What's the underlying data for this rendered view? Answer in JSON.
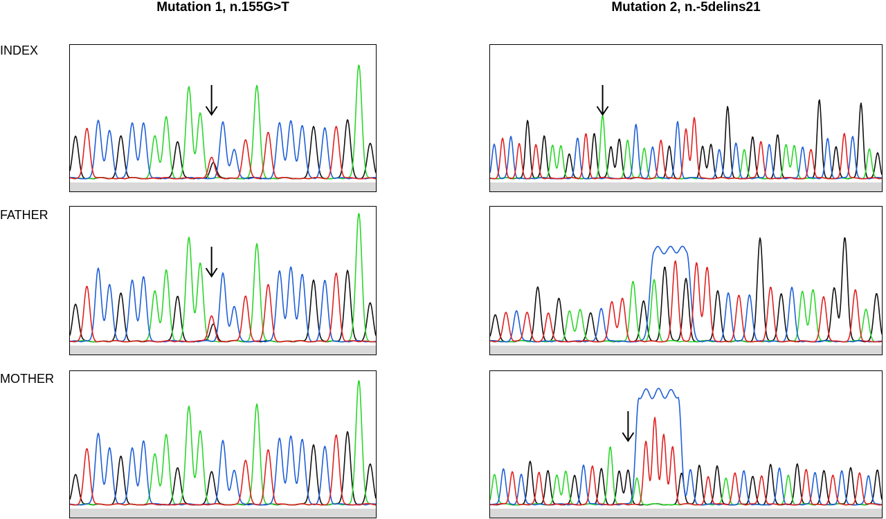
{
  "columns": [
    {
      "title": "Mutation 1, n.155G>T"
    },
    {
      "title": "Mutation 2, n.-5delins21"
    }
  ],
  "rows": [
    {
      "label": "INDEX"
    },
    {
      "label": "FATHER"
    },
    {
      "label": "MOTHER"
    }
  ],
  "colors": {
    "A": "#2bd62b",
    "C": "#1f5fd6",
    "G": "#111111",
    "T": "#e02020",
    "baseline": "#d9d9d9"
  },
  "chart_data": [
    {
      "type": "line",
      "panel": "INDEX / Mutation 1, n.155G>T",
      "arrow_at_peak": 12,
      "peaks": [
        {
          "base": "G",
          "h": 0.32
        },
        {
          "base": "T",
          "h": 0.38
        },
        {
          "base": "C",
          "h": 0.44
        },
        {
          "base": "C",
          "h": 0.36
        },
        {
          "base": "G",
          "h": 0.32
        },
        {
          "base": "C",
          "h": 0.42
        },
        {
          "base": "C",
          "h": 0.42
        },
        {
          "base": "A",
          "h": 0.32
        },
        {
          "base": "A",
          "h": 0.46
        },
        {
          "base": "G",
          "h": 0.28
        },
        {
          "base": "A",
          "h": 0.69
        },
        {
          "base": "A",
          "h": 0.49
        },
        {
          "base": "T",
          "h": 0.16,
          "sec": {
            "base": "G",
            "h": 0.12
          }
        },
        {
          "base": "C",
          "h": 0.42
        },
        {
          "base": "C",
          "h": 0.22
        },
        {
          "base": "T",
          "h": 0.29
        },
        {
          "base": "A",
          "h": 0.7
        },
        {
          "base": "T",
          "h": 0.35
        },
        {
          "base": "C",
          "h": 0.42
        },
        {
          "base": "C",
          "h": 0.43
        },
        {
          "base": "C",
          "h": 0.4
        },
        {
          "base": "G",
          "h": 0.39
        },
        {
          "base": "C",
          "h": 0.38
        },
        {
          "base": "T",
          "h": 0.39
        },
        {
          "base": "G",
          "h": 0.44
        },
        {
          "base": "A",
          "h": 0.86
        },
        {
          "base": "G",
          "h": 0.26
        }
      ]
    },
    {
      "type": "line",
      "panel": "INDEX / Mutation 2, n.-5delins21",
      "arrow_at_peak": 13,
      "peaks": [
        {
          "base": "C",
          "h": 0.26
        },
        {
          "base": "T",
          "h": 0.3
        },
        {
          "base": "C",
          "h": 0.31
        },
        {
          "base": "T",
          "h": 0.26
        },
        {
          "base": "G",
          "h": 0.44
        },
        {
          "base": "T",
          "h": 0.25
        },
        {
          "base": "G",
          "h": 0.32
        },
        {
          "base": "A",
          "h": 0.25
        },
        {
          "base": "A",
          "h": 0.25
        },
        {
          "base": "G",
          "h": 0.18
        },
        {
          "base": "C",
          "h": 0.3
        },
        {
          "base": "T",
          "h": 0.34
        },
        {
          "base": "G",
          "h": 0.34
        },
        {
          "base": "A",
          "h": 0.47
        },
        {
          "base": "G",
          "h": 0.24
        },
        {
          "base": "G",
          "h": 0.3
        },
        {
          "base": "A",
          "h": 0.29
        },
        {
          "base": "C",
          "h": 0.41
        },
        {
          "base": "A",
          "h": 0.23
        },
        {
          "base": "C",
          "h": 0.24
        },
        {
          "base": "T",
          "h": 0.29
        },
        {
          "base": "G",
          "h": 0.24
        },
        {
          "base": "C",
          "h": 0.43
        },
        {
          "base": "T",
          "h": 0.37
        },
        {
          "base": "T",
          "h": 0.46
        },
        {
          "base": "G",
          "h": 0.24
        },
        {
          "base": "G",
          "h": 0.26
        },
        {
          "base": "C",
          "h": 0.22
        },
        {
          "base": "G",
          "h": 0.54
        },
        {
          "base": "C",
          "h": 0.27
        },
        {
          "base": "A",
          "h": 0.22
        },
        {
          "base": "G",
          "h": 0.31
        },
        {
          "base": "T",
          "h": 0.28
        },
        {
          "base": "C",
          "h": 0.26
        },
        {
          "base": "G",
          "h": 0.33
        },
        {
          "base": "A",
          "h": 0.25
        },
        {
          "base": "A",
          "h": 0.25
        },
        {
          "base": "C",
          "h": 0.24
        },
        {
          "base": "T",
          "h": 0.22
        },
        {
          "base": "G",
          "h": 0.59
        },
        {
          "base": "C",
          "h": 0.3
        },
        {
          "base": "G",
          "h": 0.24
        },
        {
          "base": "T",
          "h": 0.34
        },
        {
          "base": "C",
          "h": 0.32
        },
        {
          "base": "G",
          "h": 0.57
        },
        {
          "base": "A",
          "h": 0.22
        },
        {
          "base": "G",
          "h": 0.19
        }
      ]
    },
    {
      "type": "line",
      "panel": "FATHER / Mutation 1, n.155G>T",
      "arrow_at_peak": 12,
      "peaks": [
        {
          "base": "G",
          "h": 0.28
        },
        {
          "base": "T",
          "h": 0.41
        },
        {
          "base": "C",
          "h": 0.55
        },
        {
          "base": "C",
          "h": 0.42
        },
        {
          "base": "G",
          "h": 0.36
        },
        {
          "base": "C",
          "h": 0.46
        },
        {
          "base": "C",
          "h": 0.48
        },
        {
          "base": "A",
          "h": 0.38
        },
        {
          "base": "A",
          "h": 0.53
        },
        {
          "base": "G",
          "h": 0.34
        },
        {
          "base": "A",
          "h": 0.78
        },
        {
          "base": "A",
          "h": 0.58
        },
        {
          "base": "T",
          "h": 0.19,
          "sec": {
            "base": "G",
            "h": 0.13
          }
        },
        {
          "base": "C",
          "h": 0.51
        },
        {
          "base": "C",
          "h": 0.26
        },
        {
          "base": "T",
          "h": 0.34
        },
        {
          "base": "A",
          "h": 0.73
        },
        {
          "base": "T",
          "h": 0.42
        },
        {
          "base": "C",
          "h": 0.53
        },
        {
          "base": "C",
          "h": 0.55
        },
        {
          "base": "C",
          "h": 0.5
        },
        {
          "base": "G",
          "h": 0.46
        },
        {
          "base": "C",
          "h": 0.45
        },
        {
          "base": "T",
          "h": 0.51
        },
        {
          "base": "G",
          "h": 0.53
        },
        {
          "base": "A",
          "h": 0.96
        },
        {
          "base": "G",
          "h": 0.29
        }
      ]
    },
    {
      "type": "line",
      "panel": "FATHER / Mutation 2, n.-5delins21",
      "wide_peaks": [
        {
          "base": "C",
          "center": 0.46,
          "width": 0.085,
          "h": 0.71
        }
      ],
      "peaks": [
        {
          "base": "G",
          "h": 0.2
        },
        {
          "base": "T",
          "h": 0.22
        },
        {
          "base": "C",
          "h": 0.23
        },
        {
          "base": "T",
          "h": 0.22
        },
        {
          "base": "G",
          "h": 0.41
        },
        {
          "base": "T",
          "h": 0.21
        },
        {
          "base": "G",
          "h": 0.32
        },
        {
          "base": "A",
          "h": 0.23
        },
        {
          "base": "A",
          "h": 0.24
        },
        {
          "base": "G",
          "h": 0.21
        },
        {
          "base": "C",
          "h": 0.25
        },
        {
          "base": "T",
          "h": 0.3
        },
        {
          "base": "T",
          "h": 0.32
        },
        {
          "base": "A",
          "h": 0.45
        },
        {
          "base": "G",
          "h": 0.3
        },
        {
          "base": "A",
          "h": 0.46
        },
        {
          "base": "G",
          "h": 0.56
        },
        {
          "base": "T",
          "h": 0.6
        },
        {
          "base": "G",
          "h": 0.47
        },
        {
          "base": "T",
          "h": 0.59
        },
        {
          "base": "T",
          "h": 0.55
        },
        {
          "base": "G",
          "h": 0.38
        },
        {
          "base": "C",
          "h": 0.36
        },
        {
          "base": "T",
          "h": 0.34
        },
        {
          "base": "C",
          "h": 0.35
        },
        {
          "base": "G",
          "h": 0.77
        },
        {
          "base": "T",
          "h": 0.4
        },
        {
          "base": "G",
          "h": 0.36
        },
        {
          "base": "C",
          "h": 0.4
        },
        {
          "base": "A",
          "h": 0.37
        },
        {
          "base": "A",
          "h": 0.39
        },
        {
          "base": "T",
          "h": 0.33
        },
        {
          "base": "G",
          "h": 0.4
        },
        {
          "base": "G",
          "h": 0.78
        },
        {
          "base": "T",
          "h": 0.38
        },
        {
          "base": "A",
          "h": 0.24
        },
        {
          "base": "G",
          "h": 0.36
        }
      ]
    },
    {
      "type": "line",
      "panel": "MOTHER / Mutation 1, n.155G>T",
      "peaks": [
        {
          "base": "G",
          "h": 0.23
        },
        {
          "base": "T",
          "h": 0.42
        },
        {
          "base": "C",
          "h": 0.54
        },
        {
          "base": "C",
          "h": 0.43
        },
        {
          "base": "G",
          "h": 0.36
        },
        {
          "base": "C",
          "h": 0.43
        },
        {
          "base": "C",
          "h": 0.48
        },
        {
          "base": "A",
          "h": 0.38
        },
        {
          "base": "A",
          "h": 0.53
        },
        {
          "base": "G",
          "h": 0.28
        },
        {
          "base": "A",
          "h": 0.74
        },
        {
          "base": "A",
          "h": 0.56
        },
        {
          "base": "G",
          "h": 0.25
        },
        {
          "base": "C",
          "h": 0.48
        },
        {
          "base": "C",
          "h": 0.26
        },
        {
          "base": "T",
          "h": 0.33
        },
        {
          "base": "A",
          "h": 0.76
        },
        {
          "base": "T",
          "h": 0.41
        },
        {
          "base": "C",
          "h": 0.5
        },
        {
          "base": "C",
          "h": 0.52
        },
        {
          "base": "C",
          "h": 0.49
        },
        {
          "base": "G",
          "h": 0.45
        },
        {
          "base": "C",
          "h": 0.44
        },
        {
          "base": "T",
          "h": 0.52
        },
        {
          "base": "G",
          "h": 0.55
        },
        {
          "base": "A",
          "h": 0.94
        },
        {
          "base": "G",
          "h": 0.3
        }
      ]
    },
    {
      "type": "line",
      "panel": "MOTHER / Mutation 2, n.-5delins21",
      "arrow_at_peak": 15,
      "wide_peaks": [
        {
          "base": "C",
          "center": 0.43,
          "width": 0.1,
          "h": 0.87
        }
      ],
      "peaks": [
        {
          "base": "A",
          "h": 0.23
        },
        {
          "base": "C",
          "h": 0.27
        },
        {
          "base": "T",
          "h": 0.25
        },
        {
          "base": "C",
          "h": 0.23
        },
        {
          "base": "G",
          "h": 0.33
        },
        {
          "base": "T",
          "h": 0.24
        },
        {
          "base": "G",
          "h": 0.26
        },
        {
          "base": "A",
          "h": 0.22
        },
        {
          "base": "A",
          "h": 0.25
        },
        {
          "base": "G",
          "h": 0.22
        },
        {
          "base": "C",
          "h": 0.3
        },
        {
          "base": "T",
          "h": 0.29
        },
        {
          "base": "G",
          "h": 0.27
        },
        {
          "base": "A",
          "h": 0.44
        },
        {
          "base": "G",
          "h": 0.25
        },
        {
          "base": "G",
          "h": 0.26
        },
        {
          "base": "A",
          "h": 0.2
        },
        {
          "base": "T",
          "h": 0.48
        },
        {
          "base": "T",
          "h": 0.65
        },
        {
          "base": "T",
          "h": 0.53
        },
        {
          "base": "T",
          "h": 0.44
        },
        {
          "base": "G",
          "h": 0.24
        },
        {
          "base": "C",
          "h": 0.26
        },
        {
          "base": "G",
          "h": 0.3
        },
        {
          "base": "T",
          "h": 0.21
        },
        {
          "base": "G",
          "h": 0.29
        },
        {
          "base": "A",
          "h": 0.2
        },
        {
          "base": "T",
          "h": 0.24
        },
        {
          "base": "C",
          "h": 0.25
        },
        {
          "base": "G",
          "h": 0.21
        },
        {
          "base": "T",
          "h": 0.22
        },
        {
          "base": "G",
          "h": 0.3
        },
        {
          "base": "C",
          "h": 0.27
        },
        {
          "base": "A",
          "h": 0.22
        },
        {
          "base": "G",
          "h": 0.31
        },
        {
          "base": "T",
          "h": 0.26
        },
        {
          "base": "C",
          "h": 0.24
        },
        {
          "base": "G",
          "h": 0.26
        },
        {
          "base": "T",
          "h": 0.22
        },
        {
          "base": "C",
          "h": 0.25
        },
        {
          "base": "G",
          "h": 0.28
        },
        {
          "base": "T",
          "h": 0.24
        },
        {
          "base": "C",
          "h": 0.22
        },
        {
          "base": "G",
          "h": 0.26
        }
      ]
    }
  ]
}
